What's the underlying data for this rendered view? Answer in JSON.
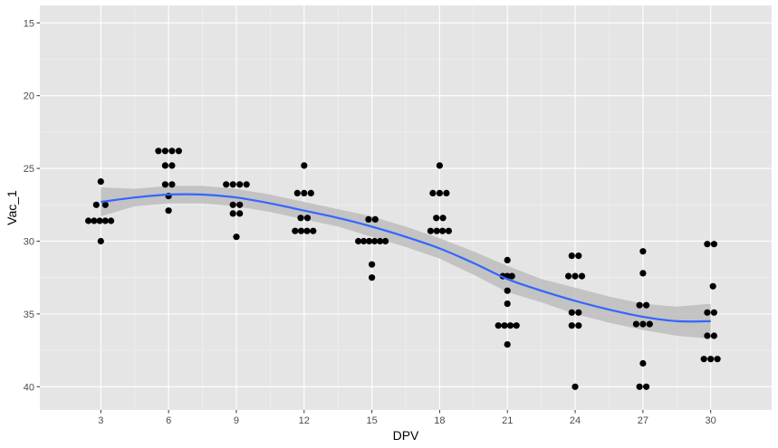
{
  "chart_data": {
    "type": "scatter",
    "title": "",
    "xlabel": "DPV",
    "ylabel": "Vac_1",
    "y_axis_reversed": true,
    "xlim": [
      0.3,
      32.7
    ],
    "ylim": [
      41.6,
      13.8
    ],
    "x_ticks": [
      3,
      6,
      9,
      12,
      15,
      18,
      21,
      24,
      27,
      30
    ],
    "y_ticks": [
      15,
      20,
      25,
      30,
      35,
      40
    ],
    "grid": true,
    "legend": "none",
    "colors": {
      "panel_background": "#e5e5e5",
      "grid_major": "#ffffff",
      "grid_minor": "#f2f2f2",
      "points": "#000000",
      "smooth_line": "#3366ff",
      "confidence_band": "#bdbdbd"
    },
    "points": [
      {
        "x": 2.45,
        "y": 28.6
      },
      {
        "x": 2.7,
        "y": 28.6
      },
      {
        "x": 2.95,
        "y": 28.6
      },
      {
        "x": 3.2,
        "y": 28.6
      },
      {
        "x": 3.45,
        "y": 28.6
      },
      {
        "x": 2.8,
        "y": 27.5
      },
      {
        "x": 3.2,
        "y": 27.5
      },
      {
        "x": 3.0,
        "y": 25.9
      },
      {
        "x": 3.0,
        "y": 30.0
      },
      {
        "x": 5.55,
        "y": 23.8
      },
      {
        "x": 5.85,
        "y": 23.8
      },
      {
        "x": 6.15,
        "y": 23.8
      },
      {
        "x": 6.45,
        "y": 23.8
      },
      {
        "x": 5.85,
        "y": 24.8
      },
      {
        "x": 6.15,
        "y": 24.8
      },
      {
        "x": 5.85,
        "y": 26.1
      },
      {
        "x": 6.15,
        "y": 26.1
      },
      {
        "x": 6.0,
        "y": 26.9
      },
      {
        "x": 6.0,
        "y": 27.9
      },
      {
        "x": 8.55,
        "y": 26.1
      },
      {
        "x": 8.85,
        "y": 26.1
      },
      {
        "x": 9.15,
        "y": 26.1
      },
      {
        "x": 9.45,
        "y": 26.1
      },
      {
        "x": 8.85,
        "y": 27.5
      },
      {
        "x": 9.15,
        "y": 27.5
      },
      {
        "x": 8.85,
        "y": 28.1
      },
      {
        "x": 9.15,
        "y": 28.1
      },
      {
        "x": 9.0,
        "y": 29.7
      },
      {
        "x": 12.0,
        "y": 24.8
      },
      {
        "x": 11.7,
        "y": 26.7
      },
      {
        "x": 12.0,
        "y": 26.7
      },
      {
        "x": 12.3,
        "y": 26.7
      },
      {
        "x": 11.85,
        "y": 28.4
      },
      {
        "x": 12.15,
        "y": 28.4
      },
      {
        "x": 11.6,
        "y": 29.3
      },
      {
        "x": 11.87,
        "y": 29.3
      },
      {
        "x": 12.13,
        "y": 29.3
      },
      {
        "x": 12.4,
        "y": 29.3
      },
      {
        "x": 14.85,
        "y": 28.5
      },
      {
        "x": 15.15,
        "y": 28.5
      },
      {
        "x": 14.4,
        "y": 30.0
      },
      {
        "x": 14.64,
        "y": 30.0
      },
      {
        "x": 14.88,
        "y": 30.0
      },
      {
        "x": 15.12,
        "y": 30.0
      },
      {
        "x": 15.36,
        "y": 30.0
      },
      {
        "x": 15.6,
        "y": 30.0
      },
      {
        "x": 15.0,
        "y": 31.6
      },
      {
        "x": 15.0,
        "y": 32.5
      },
      {
        "x": 18.0,
        "y": 24.8
      },
      {
        "x": 17.7,
        "y": 26.7
      },
      {
        "x": 18.0,
        "y": 26.7
      },
      {
        "x": 18.3,
        "y": 26.7
      },
      {
        "x": 17.85,
        "y": 28.4
      },
      {
        "x": 18.15,
        "y": 28.4
      },
      {
        "x": 17.6,
        "y": 29.3
      },
      {
        "x": 17.87,
        "y": 29.3
      },
      {
        "x": 18.13,
        "y": 29.3
      },
      {
        "x": 18.4,
        "y": 29.3
      },
      {
        "x": 21.0,
        "y": 31.3
      },
      {
        "x": 20.8,
        "y": 32.4
      },
      {
        "x": 21.0,
        "y": 32.4
      },
      {
        "x": 21.2,
        "y": 32.4
      },
      {
        "x": 21.0,
        "y": 33.4
      },
      {
        "x": 21.0,
        "y": 34.3
      },
      {
        "x": 20.6,
        "y": 35.8
      },
      {
        "x": 20.87,
        "y": 35.8
      },
      {
        "x": 21.13,
        "y": 35.8
      },
      {
        "x": 21.4,
        "y": 35.8
      },
      {
        "x": 21.0,
        "y": 37.1
      },
      {
        "x": 23.85,
        "y": 31.0
      },
      {
        "x": 24.15,
        "y": 31.0
      },
      {
        "x": 23.7,
        "y": 32.4
      },
      {
        "x": 24.0,
        "y": 32.4
      },
      {
        "x": 24.3,
        "y": 32.4
      },
      {
        "x": 23.85,
        "y": 34.9
      },
      {
        "x": 24.15,
        "y": 34.9
      },
      {
        "x": 23.85,
        "y": 35.8
      },
      {
        "x": 24.15,
        "y": 35.8
      },
      {
        "x": 24.0,
        "y": 40.0
      },
      {
        "x": 27.0,
        "y": 30.7
      },
      {
        "x": 27.0,
        "y": 32.2
      },
      {
        "x": 26.85,
        "y": 34.4
      },
      {
        "x": 27.15,
        "y": 34.4
      },
      {
        "x": 26.7,
        "y": 35.7
      },
      {
        "x": 27.0,
        "y": 35.7
      },
      {
        "x": 27.3,
        "y": 35.7
      },
      {
        "x": 27.0,
        "y": 38.4
      },
      {
        "x": 26.85,
        "y": 40.0
      },
      {
        "x": 27.15,
        "y": 40.0
      },
      {
        "x": 29.85,
        "y": 30.2
      },
      {
        "x": 30.15,
        "y": 30.2
      },
      {
        "x": 30.1,
        "y": 33.1
      },
      {
        "x": 29.85,
        "y": 34.9
      },
      {
        "x": 30.15,
        "y": 34.9
      },
      {
        "x": 29.85,
        "y": 36.5
      },
      {
        "x": 30.15,
        "y": 36.5
      },
      {
        "x": 29.7,
        "y": 38.1
      },
      {
        "x": 30.0,
        "y": 38.1
      },
      {
        "x": 30.3,
        "y": 38.1
      }
    ],
    "smooth_fit": {
      "method": "loess",
      "x": [
        3,
        4.5,
        6,
        7.5,
        9,
        10.5,
        12,
        13.5,
        15,
        16.5,
        18,
        19.5,
        21,
        22.5,
        24,
        25.5,
        27,
        28.5,
        30
      ],
      "y": [
        27.3,
        27.0,
        26.8,
        26.8,
        27.0,
        27.4,
        27.9,
        28.4,
        29.0,
        29.7,
        30.5,
        31.5,
        32.6,
        33.4,
        34.1,
        34.7,
        35.2,
        35.5,
        35.5
      ],
      "lower": [
        26.3,
        26.4,
        26.2,
        26.2,
        26.4,
        26.8,
        27.3,
        27.8,
        28.3,
        29.0,
        29.8,
        30.7,
        31.7,
        32.6,
        33.2,
        33.8,
        34.3,
        34.5,
        34.3
      ],
      "upper": [
        28.3,
        27.6,
        27.4,
        27.4,
        27.6,
        28.0,
        28.5,
        29.0,
        29.7,
        30.4,
        31.2,
        32.3,
        33.5,
        34.2,
        35.0,
        35.6,
        36.1,
        36.5,
        36.7
      ]
    }
  }
}
